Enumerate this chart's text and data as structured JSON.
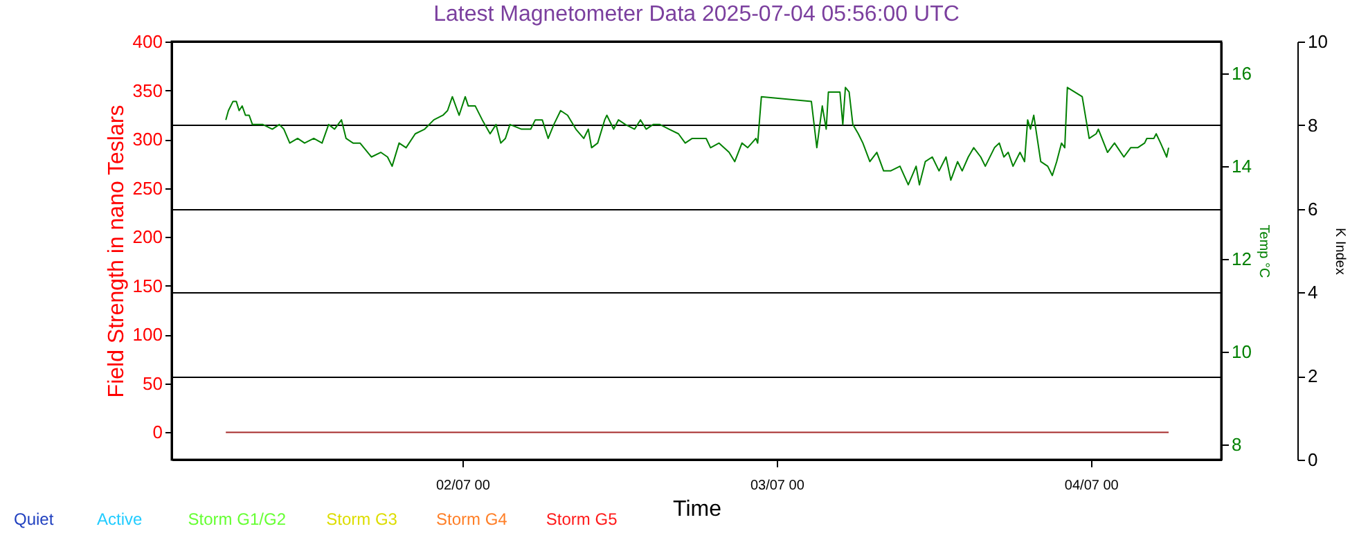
{
  "chart_data": {
    "type": "line",
    "title": "Latest Magnetometer Data 2025-07-04 05:56:00 UTC",
    "xlabel": "Time",
    "ylabel": "Field Strength in nano Teslars",
    "y2label": "Temp °C",
    "y3label": "K Index",
    "xlim": [
      "2025-07-01T01:48",
      "2025-07-04T09:57"
    ],
    "xticks": [
      {
        "value": "2025-07-02T00:00",
        "label": "02/07 00"
      },
      {
        "value": "2025-07-03T00:00",
        "label": "03/07 00"
      },
      {
        "value": "2025-07-04T00:00",
        "label": "04/07 00"
      }
    ],
    "ylim": [
      -28,
      400
    ],
    "yticks": [
      0,
      50,
      100,
      150,
      200,
      250,
      300,
      350,
      400
    ],
    "y2lim": [
      7.67,
      16.69
    ],
    "y2ticks": [
      8,
      10,
      12,
      14,
      16
    ],
    "y3lim": [
      0,
      10
    ],
    "y3ticks": [
      0,
      2,
      4,
      6,
      8,
      10
    ],
    "grid": "y3",
    "series": [
      {
        "color": "#a52a2a",
        "x": [
          "2025-07-01T05:56",
          "2025-07-04T05:56"
        ],
        "values": [
          0,
          0
        ]
      },
      {
        "color": "#008000",
        "axis": "y2",
        "x": [
          "2025-07-01T05:56",
          "2025-07-01T06:08",
          "2025-07-01T06:29",
          "2025-07-01T06:44",
          "2025-07-01T06:57",
          "2025-07-01T07:11",
          "2025-07-01T07:26",
          "2025-07-01T07:43",
          "2025-07-01T07:58",
          "2025-07-01T08:46",
          "2025-07-01T09:29",
          "2025-07-01T10:01",
          "2025-07-01T10:22",
          "2025-07-01T10:49",
          "2025-07-01T11:25",
          "2025-07-01T11:57",
          "2025-07-01T12:39",
          "2025-07-01T13:17",
          "2025-07-01T13:47",
          "2025-07-01T14:14",
          "2025-07-01T14:46",
          "2025-07-01T15:07",
          "2025-07-01T15:39",
          "2025-07-01T16:11",
          "2025-07-01T17:03",
          "2025-07-01T17:46",
          "2025-07-01T18:17",
          "2025-07-01T18:38",
          "2025-07-01T19:10",
          "2025-07-01T19:42",
          "2025-07-01T20:24",
          "2025-07-01T21:07",
          "2025-07-01T21:49",
          "2025-07-01T22:31",
          "2025-07-01T22:52",
          "2025-07-01T23:14",
          "2025-07-01T23:45",
          "2025-07-02T00:13",
          "2025-07-02T00:27",
          "2025-07-02T00:59",
          "2025-07-02T01:31",
          "2025-07-02T02:07",
          "2025-07-02T02:34",
          "2025-07-02T02:56",
          "2025-07-02T03:17",
          "2025-07-02T03:38",
          "2025-07-02T04:31",
          "2025-07-02T05:13",
          "2025-07-02T05:34",
          "2025-07-02T06:06",
          "2025-07-02T06:33",
          "2025-07-02T06:59",
          "2025-07-02T07:30",
          "2025-07-02T08:02",
          "2025-07-02T08:40",
          "2025-07-02T09:16",
          "2025-07-02T09:37",
          "2025-07-02T09:52",
          "2025-07-02T10:20",
          "2025-07-02T10:52",
          "2025-07-02T11:02",
          "2025-07-02T11:33",
          "2025-07-02T11:55",
          "2025-07-02T12:27",
          "2025-07-02T13:09",
          "2025-07-02T13:36",
          "2025-07-02T14:02",
          "2025-07-02T14:34",
          "2025-07-02T15:05",
          "2025-07-02T15:47",
          "2025-07-02T16:30",
          "2025-07-02T17:01",
          "2025-07-02T17:33",
          "2025-07-02T18:05",
          "2025-07-02T18:37",
          "2025-07-02T18:57",
          "2025-07-02T19:36",
          "2025-07-02T20:22",
          "2025-07-02T20:48",
          "2025-07-02T21:21",
          "2025-07-02T21:47",
          "2025-07-02T22:25",
          "2025-07-02T22:33",
          "2025-07-02T22:50",
          "2025-07-03T02:39",
          "2025-07-03T03:04",
          "2025-07-03T03:29",
          "2025-07-03T03:47",
          "2025-07-03T03:57",
          "2025-07-03T04:50",
          "2025-07-03T05:03",
          "2025-07-03T05:15",
          "2025-07-03T05:32",
          "2025-07-03T05:49",
          "2025-07-03T06:14",
          "2025-07-03T06:35",
          "2025-07-03T07:07",
          "2025-07-03T07:39",
          "2025-07-03T08:10",
          "2025-07-03T08:42",
          "2025-07-03T09:25",
          "2025-07-03T10:03",
          "2025-07-03T10:39",
          "2025-07-03T10:54",
          "2025-07-03T11:21",
          "2025-07-03T11:53",
          "2025-07-03T12:24",
          "2025-07-03T12:56",
          "2025-07-03T13:18",
          "2025-07-03T13:49",
          "2025-07-03T14:10",
          "2025-07-03T14:38",
          "2025-07-03T15:03",
          "2025-07-03T15:35",
          "2025-07-03T15:56",
          "2025-07-03T16:38",
          "2025-07-03T17:00",
          "2025-07-03T17:21",
          "2025-07-03T17:41",
          "2025-07-03T18:03",
          "2025-07-03T18:35",
          "2025-07-03T18:56",
          "2025-07-03T19:10",
          "2025-07-03T19:23",
          "2025-07-03T19:38",
          "2025-07-03T20:10",
          "2025-07-03T20:42",
          "2025-07-03T21:03",
          "2025-07-03T21:23",
          "2025-07-03T21:45",
          "2025-07-03T22:00",
          "2025-07-03T22:12",
          "2025-07-03T23:20",
          "2025-07-03T23:52",
          "2025-07-04T00:24",
          "2025-07-04T00:34",
          "2025-07-04T01:16",
          "2025-07-04T01:48",
          "2025-07-04T02:31",
          "2025-07-04T03:02",
          "2025-07-04T03:34",
          "2025-07-04T04:06",
          "2025-07-04T04:16",
          "2025-07-04T04:48",
          "2025-07-04T04:59",
          "2025-07-04T05:19",
          "2025-07-04T05:47",
          "2025-07-04T05:56"
        ],
        "values": [
          15.0,
          15.2,
          15.4,
          15.4,
          15.2,
          15.3,
          15.1,
          15.1,
          14.9,
          14.9,
          14.8,
          14.9,
          14.8,
          14.5,
          14.6,
          14.5,
          14.6,
          14.5,
          14.9,
          14.8,
          15.0,
          14.6,
          14.5,
          14.5,
          14.2,
          14.3,
          14.2,
          14.0,
          14.5,
          14.4,
          14.7,
          14.8,
          15.0,
          15.1,
          15.2,
          15.5,
          15.1,
          15.5,
          15.3,
          15.3,
          15.0,
          14.7,
          14.9,
          14.5,
          14.6,
          14.9,
          14.8,
          14.8,
          15.0,
          15.0,
          14.6,
          14.9,
          15.2,
          15.1,
          14.8,
          14.6,
          14.8,
          14.4,
          14.5,
          15.0,
          15.1,
          14.8,
          15.0,
          14.9,
          14.8,
          15.0,
          14.8,
          14.9,
          14.9,
          14.8,
          14.7,
          14.5,
          14.6,
          14.6,
          14.6,
          14.4,
          14.5,
          14.3,
          14.1,
          14.5,
          14.4,
          14.6,
          14.5,
          15.5,
          15.4,
          14.4,
          15.3,
          14.8,
          15.6,
          15.6,
          14.9,
          15.7,
          15.6,
          14.9,
          14.7,
          14.5,
          14.1,
          14.3,
          13.9,
          13.9,
          14.0,
          13.6,
          14.0,
          13.6,
          14.1,
          14.2,
          13.9,
          14.2,
          13.7,
          14.1,
          13.9,
          14.2,
          14.4,
          14.2,
          14.0,
          14.4,
          14.5,
          14.2,
          14.3,
          14.0,
          14.3,
          14.1,
          15.0,
          14.8,
          15.1,
          14.1,
          14.0,
          13.8,
          14.1,
          14.5,
          14.4,
          15.7,
          15.5,
          14.6,
          14.7,
          14.8,
          14.3,
          14.5,
          14.2,
          14.4,
          14.4,
          14.5,
          14.6,
          14.6,
          14.7,
          14.5,
          14.2,
          14.4
        ]
      },
      {
        "name": "Quiet",
        "color": "#1f3fbf"
      },
      {
        "name": "Active",
        "color": "#22ccff"
      },
      {
        "name": "Storm G1/G2",
        "color": "#66ff33"
      },
      {
        "name": "Storm G3",
        "color": "#dddd00"
      },
      {
        "name": "Storm G4",
        "color": "#ff7f27"
      },
      {
        "name": "Storm G5",
        "color": "#ff1a1a"
      }
    ]
  }
}
